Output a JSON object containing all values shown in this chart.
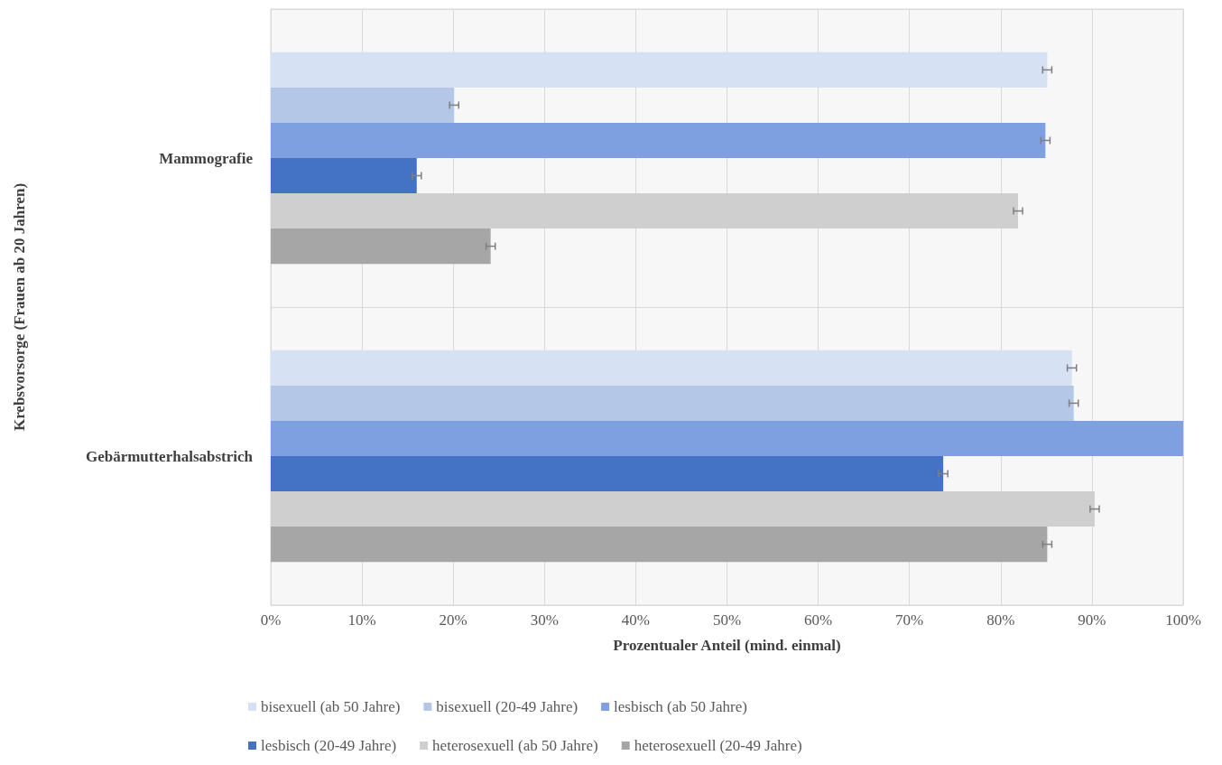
{
  "chart_data": {
    "type": "bar",
    "orientation": "horizontal",
    "ylabel": "Krebsvorsorge (Frauen ab 20 Jahren)",
    "xlabel": "Prozentualer Anteil (mind. einmal)",
    "categories": [
      "Mammografie",
      "Gebärmutterhalsabstrich"
    ],
    "series": [
      {
        "name": "bisexuell (ab 50 Jahre)",
        "color": "#d6e1f4",
        "values": [
          85.1,
          87.8
        ],
        "errors": [
          0.5,
          0.5
        ]
      },
      {
        "name": "bisexuell (20-49 Jahre)",
        "color": "#b4c7e7",
        "values": [
          20.1,
          88.0
        ],
        "errors": [
          0.5,
          0.5
        ]
      },
      {
        "name": "lesbisch (ab 50 Jahre)",
        "color": "#7fa0e0",
        "values": [
          84.9,
          100
        ],
        "errors": [
          0.5,
          null
        ]
      },
      {
        "name": "lesbisch (20-49 Jahre)",
        "color": "#4472c4",
        "values": [
          16.0,
          73.7
        ],
        "errors": [
          0.5,
          0.5
        ]
      },
      {
        "name": "heterosexuell (ab 50 Jahre)",
        "color": "#cfcfcf",
        "values": [
          81.9,
          90.3
        ],
        "errors": [
          0.5,
          0.5
        ]
      },
      {
        "name": "heterosexuell (20-49 Jahre)",
        "color": "#a6a6a6",
        "values": [
          24.1,
          85.1
        ],
        "errors": [
          0.5,
          0.5
        ]
      }
    ],
    "xlim": [
      0,
      100
    ],
    "xticks": [
      {
        "value": 0,
        "label": "0%"
      },
      {
        "value": 10,
        "label": "10%"
      },
      {
        "value": 20,
        "label": "20%"
      },
      {
        "value": 30,
        "label": "30%"
      },
      {
        "value": 40,
        "label": "40%"
      },
      {
        "value": 50,
        "label": "50%"
      },
      {
        "value": 60,
        "label": "60%"
      },
      {
        "value": 70,
        "label": "70%"
      },
      {
        "value": 80,
        "label": "80%"
      },
      {
        "value": 90,
        "label": "90%"
      },
      {
        "value": 100,
        "label": "100%"
      }
    ],
    "grid": true,
    "legend": "bottom"
  }
}
